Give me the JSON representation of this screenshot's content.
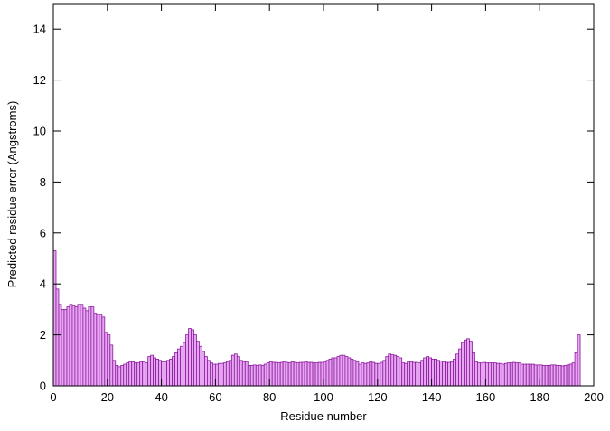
{
  "chart_data": {
    "type": "bar",
    "title": "",
    "xlabel": "Residue number",
    "ylabel": "Predicted residue error (Angstroms)",
    "xlim": [
      0,
      200
    ],
    "ylim": [
      0,
      15
    ],
    "xticks": [
      0,
      20,
      40,
      60,
      80,
      100,
      120,
      140,
      160,
      180,
      200
    ],
    "yticks": [
      0,
      2,
      4,
      6,
      8,
      10,
      12,
      14
    ],
    "grid": false,
    "legend": "none",
    "colors": {
      "bar_fill": "#e6a6f2",
      "bar_edge": "#8b1a9c"
    },
    "x_start": 1,
    "values": [
      5.3,
      3.8,
      3.2,
      3.0,
      3.0,
      3.1,
      3.2,
      3.15,
      3.1,
      3.2,
      3.2,
      3.05,
      2.95,
      3.1,
      3.1,
      2.85,
      2.8,
      2.8,
      2.7,
      2.1,
      2.0,
      1.6,
      1.0,
      0.8,
      0.75,
      0.8,
      0.85,
      0.9,
      0.95,
      0.95,
      0.9,
      0.9,
      0.95,
      0.95,
      0.9,
      1.15,
      1.2,
      1.1,
      1.05,
      1.0,
      0.95,
      0.95,
      1.0,
      1.05,
      1.15,
      1.3,
      1.45,
      1.55,
      1.7,
      2.0,
      2.25,
      2.2,
      2.0,
      1.75,
      1.55,
      1.35,
      1.15,
      1.0,
      0.9,
      0.85,
      0.85,
      0.88,
      0.88,
      0.9,
      0.95,
      1.0,
      1.2,
      1.25,
      1.15,
      1.0,
      0.95,
      0.95,
      0.8,
      0.8,
      0.82,
      0.8,
      0.82,
      0.8,
      0.85,
      0.9,
      0.95,
      0.92,
      0.92,
      0.9,
      0.92,
      0.95,
      0.92,
      0.9,
      0.95,
      0.92,
      0.9,
      0.92,
      0.92,
      0.95,
      0.92,
      0.92,
      0.9,
      0.9,
      0.92,
      0.92,
      0.95,
      1.0,
      1.05,
      1.1,
      1.1,
      1.15,
      1.2,
      1.2,
      1.15,
      1.1,
      1.05,
      1.0,
      0.95,
      0.85,
      0.9,
      0.88,
      0.9,
      0.95,
      0.92,
      0.88,
      0.88,
      0.92,
      1.0,
      1.15,
      1.25,
      1.22,
      1.2,
      1.15,
      1.1,
      0.9,
      0.88,
      0.95,
      0.95,
      0.92,
      0.92,
      0.9,
      1.0,
      1.1,
      1.15,
      1.1,
      1.05,
      1.05,
      1.0,
      0.98,
      0.95,
      0.92,
      0.92,
      0.95,
      1.05,
      1.25,
      1.45,
      1.7,
      1.8,
      1.85,
      1.75,
      1.3,
      0.95,
      0.9,
      0.9,
      0.92,
      0.9,
      0.9,
      0.9,
      0.9,
      0.88,
      0.88,
      0.85,
      0.88,
      0.9,
      0.9,
      0.92,
      0.9,
      0.9,
      0.85,
      0.85,
      0.85,
      0.85,
      0.85,
      0.82,
      0.82,
      0.82,
      0.8,
      0.8,
      0.8,
      0.82,
      0.82,
      0.8,
      0.8,
      0.78,
      0.8,
      0.82,
      0.85,
      0.9,
      1.3,
      2.0
    ]
  }
}
